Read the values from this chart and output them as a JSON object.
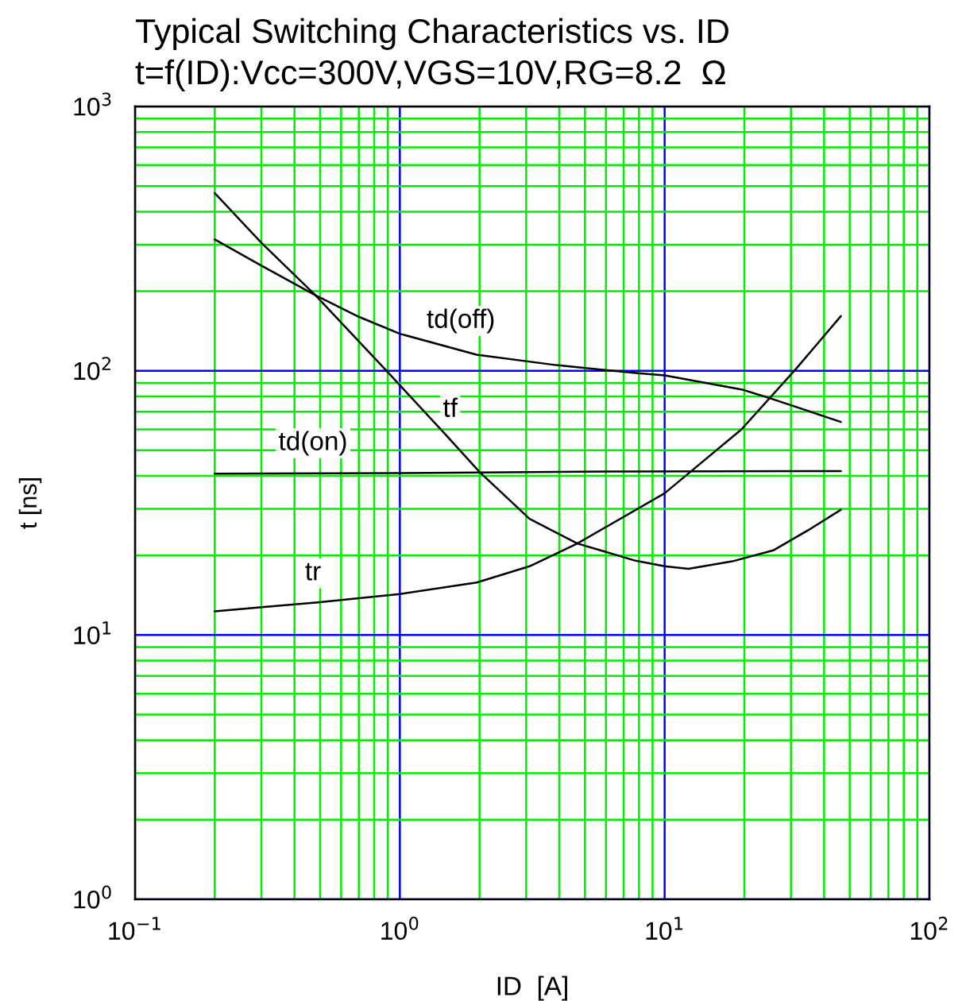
{
  "chart_data": {
    "type": "line",
    "title": "Typical Switching Characteristics vs. ID",
    "subtitle": "t=f(ID):Vcc=300V,VGS=10V,RG=8.2  Ω",
    "xlabel": "ID  [A]",
    "ylabel": "t [ns]",
    "log": "xy",
    "grid": true,
    "xlim": [
      0.1,
      100
    ],
    "ylim": [
      1,
      1000
    ],
    "xticks": [
      {
        "value": 0.1,
        "label": "10$^{−1}$"
      },
      {
        "value": 0.2,
        "label": null
      },
      {
        "value": 0.3,
        "label": null
      },
      {
        "value": 0.4,
        "label": null
      },
      {
        "value": 0.5,
        "label": null
      },
      {
        "value": 0.6,
        "label": null
      },
      {
        "value": 0.7,
        "label": null
      },
      {
        "value": 0.8,
        "label": null
      },
      {
        "value": 0.9,
        "label": null
      },
      {
        "value": 1,
        "label": "10$^{0}$"
      },
      {
        "value": 2,
        "label": null
      },
      {
        "value": 3,
        "label": null
      },
      {
        "value": 4,
        "label": null
      },
      {
        "value": 5,
        "label": null
      },
      {
        "value": 6,
        "label": null
      },
      {
        "value": 7,
        "label": null
      },
      {
        "value": 8,
        "label": null
      },
      {
        "value": 9,
        "label": null
      },
      {
        "value": 10,
        "label": "10$^{1}$"
      },
      {
        "value": 20,
        "label": null
      },
      {
        "value": 30,
        "label": null
      },
      {
        "value": 40,
        "label": null
      },
      {
        "value": 50,
        "label": null
      },
      {
        "value": 60,
        "label": null
      },
      {
        "value": 70,
        "label": null
      },
      {
        "value": 80,
        "label": null
      },
      {
        "value": 90,
        "label": null
      },
      {
        "value": 100,
        "label": "10$^{2}$"
      }
    ],
    "yticks": [
      {
        "value": 1,
        "label": "10$^{0}$"
      },
      {
        "value": 2,
        "label": null
      },
      {
        "value": 3,
        "label": null
      },
      {
        "value": 4,
        "label": null
      },
      {
        "value": 5,
        "label": null
      },
      {
        "value": 6,
        "label": null
      },
      {
        "value": 7,
        "label": null
      },
      {
        "value": 8,
        "label": null
      },
      {
        "value": 9,
        "label": null
      },
      {
        "value": 10,
        "label": "10$^{1}$"
      },
      {
        "value": 20,
        "label": null
      },
      {
        "value": 30,
        "label": null
      },
      {
        "value": 40,
        "label": null
      },
      {
        "value": 50,
        "label": null
      },
      {
        "value": 60,
        "label": null
      },
      {
        "value": 70,
        "label": null
      },
      {
        "value": 80,
        "label": null
      },
      {
        "value": 90,
        "label": null
      },
      {
        "value": 100,
        "label": "10$^{2}$"
      },
      {
        "value": 200,
        "label": null
      },
      {
        "value": 300,
        "label": null
      },
      {
        "value": 400,
        "label": null
      },
      {
        "value": 500,
        "label": null
      },
      {
        "value": 600,
        "label": null
      },
      {
        "value": 700,
        "label": null
      },
      {
        "value": 800,
        "label": null
      },
      {
        "value": 900,
        "label": null
      },
      {
        "value": 1000,
        "label": "10$^{3}$"
      }
    ],
    "series": [
      {
        "color": "#000000",
        "x": [
          0.2,
          0.3,
          0.48,
          0.7,
          1,
          1.95,
          3.9,
          7.77,
          10,
          19.5,
          25.7,
          46.3
        ],
        "values": [
          314,
          250,
          193,
          160,
          138,
          115,
          105,
          98,
          96,
          85,
          78,
          64
        ]
      },
      {
        "color": "#000000",
        "x": [
          0.2,
          0.3,
          0.48,
          0.89,
          1.48,
          2.0,
          3.09,
          4.68,
          7.77,
          10,
          12.3,
          18,
          25.7,
          35,
          46.3
        ],
        "values": [
          470,
          305,
          193,
          100,
          57.7,
          41.4,
          27.5,
          22.2,
          19.1,
          18.2,
          17.8,
          19,
          20.9,
          25,
          29.8
        ]
      },
      {
        "color": "#000000",
        "x": [
          0.2,
          1,
          7,
          46.3
        ],
        "values": [
          40.8,
          41,
          41.6,
          41.7
        ]
      },
      {
        "color": "#000000",
        "x": [
          0.2,
          0.49,
          1,
          1.95,
          3.09,
          4.68,
          10,
          19.5,
          30.9,
          46.3
        ],
        "values": [
          12.3,
          13.3,
          14.3,
          15.8,
          18.2,
          22.2,
          34.4,
          60,
          100,
          161
        ]
      }
    ],
    "annotations": [
      {
        "text": "td(off)",
        "x": 1.7,
        "y": 119
      },
      {
        "text": "tf",
        "x": 1.55,
        "y": 54.8
      },
      {
        "text": "td(on)",
        "x": 0.47,
        "y": 41
      },
      {
        "text": "tr",
        "x": 0.47,
        "y": 13.2
      }
    ]
  }
}
